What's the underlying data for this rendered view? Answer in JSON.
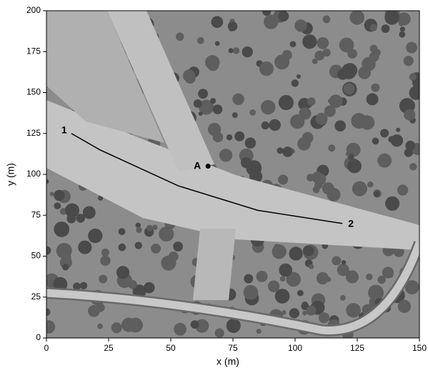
{
  "chart_data": {
    "type": "line",
    "xlabel": "x (m)",
    "ylabel": "y (m)",
    "x": [
      10,
      21.5,
      53,
      85,
      119
    ],
    "series": [
      {
        "color": "#000000",
        "values": [
          125,
          115,
          93,
          78,
          70
        ]
      }
    ],
    "endpoint_labels": [
      "1",
      "2"
    ],
    "marker": {
      "label": "A",
      "x": 65,
      "y": 105
    },
    "xlim": [
      0,
      150
    ],
    "xticks": [
      0,
      25,
      50,
      75,
      100,
      125,
      150
    ],
    "ylim": [
      0,
      200
    ],
    "yticks": [
      0,
      25,
      50,
      75,
      100,
      125,
      150,
      175,
      200
    ]
  }
}
